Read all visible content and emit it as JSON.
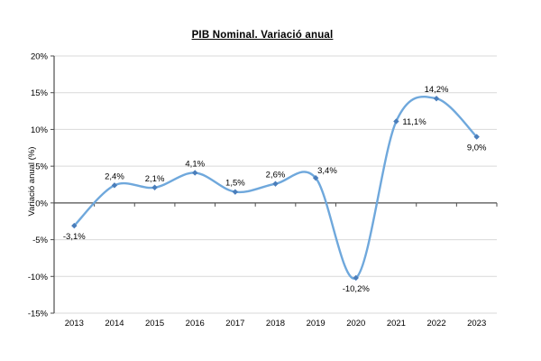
{
  "page": {
    "title": "PIB Nominal. Variació anual"
  },
  "chart_data": {
    "type": "line",
    "title": "PIB Nominal. Variació anual",
    "xlabel": "",
    "ylabel": "Variació anual (%)",
    "categories": [
      "2013",
      "2014",
      "2015",
      "2016",
      "2017",
      "2018",
      "2019",
      "2020",
      "2021",
      "2022",
      "2023"
    ],
    "series": [
      {
        "name": "PIB Nominal variació anual",
        "values": [
          -3.1,
          2.4,
          2.1,
          4.1,
          1.5,
          2.6,
          3.4,
          -10.2,
          11.1,
          14.2,
          9.0
        ]
      }
    ],
    "data_labels": [
      "-3,1%",
      "2,4%",
      "2,1%",
      "4,1%",
      "1,5%",
      "2,6%",
      "3,4%",
      "-10,2%",
      "11,1%",
      "14,2%",
      "9,0%"
    ],
    "label_placement": [
      "below",
      "above",
      "above",
      "above",
      "above",
      "above",
      "above-right",
      "below",
      "right",
      "above",
      "below"
    ],
    "ylim": [
      -15,
      20
    ],
    "ytick_step": 5,
    "ytick_labels": [
      "20%",
      "15%",
      "10%",
      "5%",
      "0%",
      "-5%",
      "-10%",
      "-15%"
    ],
    "grid": true,
    "smooth": true,
    "legend": "none",
    "colors": {
      "line": "#6FA8DC",
      "marker": "#4A7EBB",
      "grid": "#D9D9D9",
      "axis": "#4D4D4D",
      "text": "#000000",
      "background": "#FFFFFF"
    }
  }
}
